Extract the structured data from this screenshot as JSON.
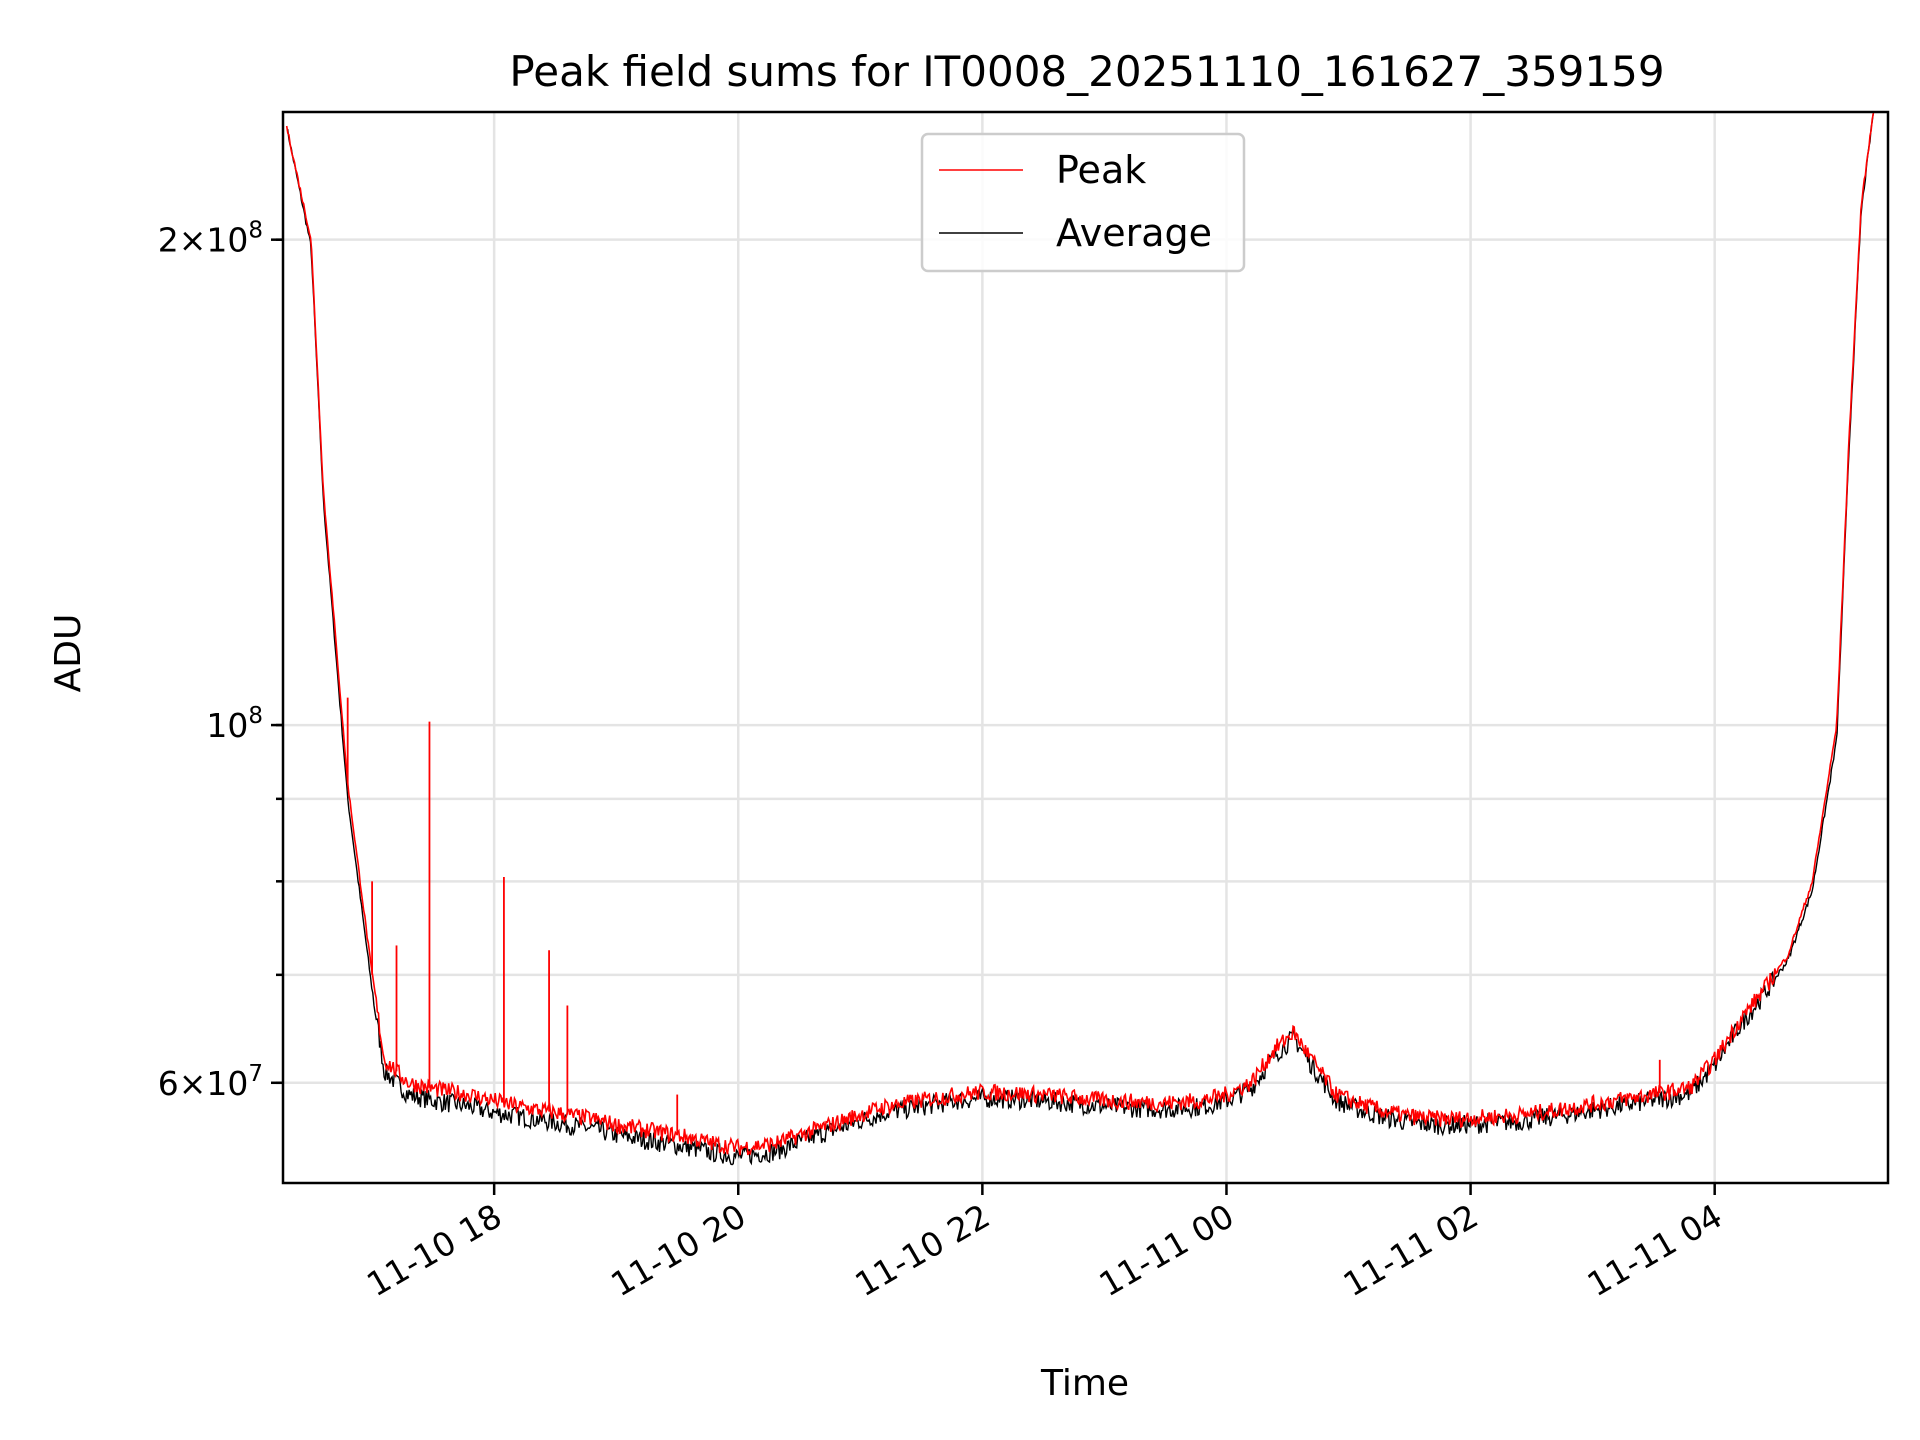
{
  "chart_data": {
    "type": "line",
    "title": "Peak field sums for IT0008_20251110_161627_359159",
    "xlabel": "Time",
    "ylabel": "ADU",
    "yscale": "log",
    "xlim_hours": [
      16.27,
      29.42
    ],
    "ylim": [
      52000000,
      240000000
    ],
    "x_ticks": [
      {
        "hour": 18,
        "label": "11-10 18"
      },
      {
        "hour": 20,
        "label": "11-10 20"
      },
      {
        "hour": 22,
        "label": "11-10 22"
      },
      {
        "hour": 24,
        "label": "11-11 00"
      },
      {
        "hour": 26,
        "label": "11-11 02"
      },
      {
        "hour": 28,
        "label": "11-11 04"
      }
    ],
    "y_major_ticks": [
      {
        "value": 100000000,
        "base": "10",
        "exp": "8"
      },
      {
        "value": 200000000,
        "coef": "2",
        "base": "10",
        "exp": "8"
      },
      {
        "value": 60000000,
        "coef": "6",
        "base": "10",
        "exp": "7"
      }
    ],
    "y_minor_ticks": [
      60000000,
      70000000,
      80000000,
      90000000,
      100000000,
      200000000
    ],
    "grid": true,
    "legend_position": "upper-center",
    "series": [
      {
        "name": "Peak",
        "color": "#ff0000",
        "hour": [
          16.3,
          16.5,
          16.6,
          16.8,
          17.0,
          17.1,
          17.3,
          17.5,
          17.8,
          18.0,
          18.2,
          18.5,
          18.8,
          19.0,
          19.3,
          19.6,
          19.8,
          20.0,
          20.3,
          20.6,
          20.9,
          21.2,
          21.5,
          21.8,
          22.0,
          22.3,
          22.6,
          22.9,
          23.2,
          23.5,
          23.8,
          24.0,
          24.2,
          24.4,
          24.55,
          24.7,
          24.9,
          25.1,
          25.3,
          25.5,
          25.7,
          25.9,
          26.1,
          26.4,
          26.7,
          27.0,
          27.3,
          27.6,
          27.8,
          28.0,
          28.2,
          28.4,
          28.6,
          28.8,
          29.0,
          29.1,
          29.2,
          29.3
        ],
        "values": [
          235000000,
          200000000,
          140000000,
          92000000,
          70000000,
          62000000,
          60000000,
          59500000,
          59000000,
          58500000,
          58000000,
          57500000,
          57000000,
          56500000,
          56000000,
          55500000,
          55000000,
          54700000,
          55000000,
          56000000,
          57000000,
          58000000,
          58500000,
          59000000,
          59200000,
          59100000,
          58900000,
          58600000,
          58400000,
          58300000,
          58500000,
          59000000,
          60000000,
          63000000,
          64500000,
          62000000,
          59000000,
          58200000,
          57600000,
          57200000,
          57000000,
          57000000,
          57100000,
          57300000,
          57700000,
          58200000,
          58700000,
          59200000,
          59600000,
          62000000,
          65500000,
          68500000,
          72000000,
          80000000,
          100000000,
          150000000,
          210000000,
          240000000
        ],
        "spikes": [
          {
            "hour": 16.8,
            "value": 104000000
          },
          {
            "hour": 17.0,
            "value": 80000000
          },
          {
            "hour": 17.2,
            "value": 73000000
          },
          {
            "hour": 17.47,
            "value": 100500000
          },
          {
            "hour": 18.08,
            "value": 80500000
          },
          {
            "hour": 18.45,
            "value": 72500000
          },
          {
            "hour": 18.6,
            "value": 67000000
          },
          {
            "hour": 19.5,
            "value": 59000000
          },
          {
            "hour": 23.0,
            "value": 58500000
          },
          {
            "hour": 27.55,
            "value": 62000000
          },
          {
            "hour": 28.65,
            "value": 74000000
          }
        ]
      },
      {
        "name": "Average",
        "color": "#000000",
        "hour": [
          16.3,
          16.5,
          16.6,
          16.8,
          17.0,
          17.1,
          17.3,
          17.5,
          17.8,
          18.0,
          18.2,
          18.5,
          18.8,
          19.0,
          19.3,
          19.6,
          19.8,
          20.0,
          20.3,
          20.6,
          20.9,
          21.2,
          21.5,
          21.8,
          22.0,
          22.3,
          22.6,
          22.9,
          23.2,
          23.5,
          23.8,
          24.0,
          24.2,
          24.4,
          24.55,
          24.7,
          24.9,
          25.1,
          25.3,
          25.5,
          25.7,
          25.9,
          26.1,
          26.4,
          26.7,
          27.0,
          27.3,
          27.6,
          27.8,
          28.0,
          28.2,
          28.4,
          28.6,
          28.8,
          29.0,
          29.1,
          29.2,
          29.3
        ],
        "values": [
          235000000,
          198000000,
          138000000,
          90000000,
          68500000,
          61000000,
          59000000,
          58500000,
          58000000,
          57500000,
          57200000,
          56700000,
          56200000,
          55700000,
          55200000,
          54700000,
          54300000,
          54000000,
          54400000,
          55500000,
          56500000,
          57500000,
          58000000,
          58500000,
          58700000,
          58600000,
          58400000,
          58100000,
          57900000,
          57800000,
          58000000,
          58500000,
          59500000,
          62500000,
          64000000,
          61500000,
          58500000,
          57700000,
          57100000,
          56700000,
          56500000,
          56500000,
          56600000,
          56800000,
          57200000,
          57700000,
          58200000,
          58700000,
          59100000,
          61500000,
          65000000,
          68000000,
          71500000,
          79000000,
          98000000,
          148000000,
          208000000,
          240000000
        ]
      }
    ]
  }
}
